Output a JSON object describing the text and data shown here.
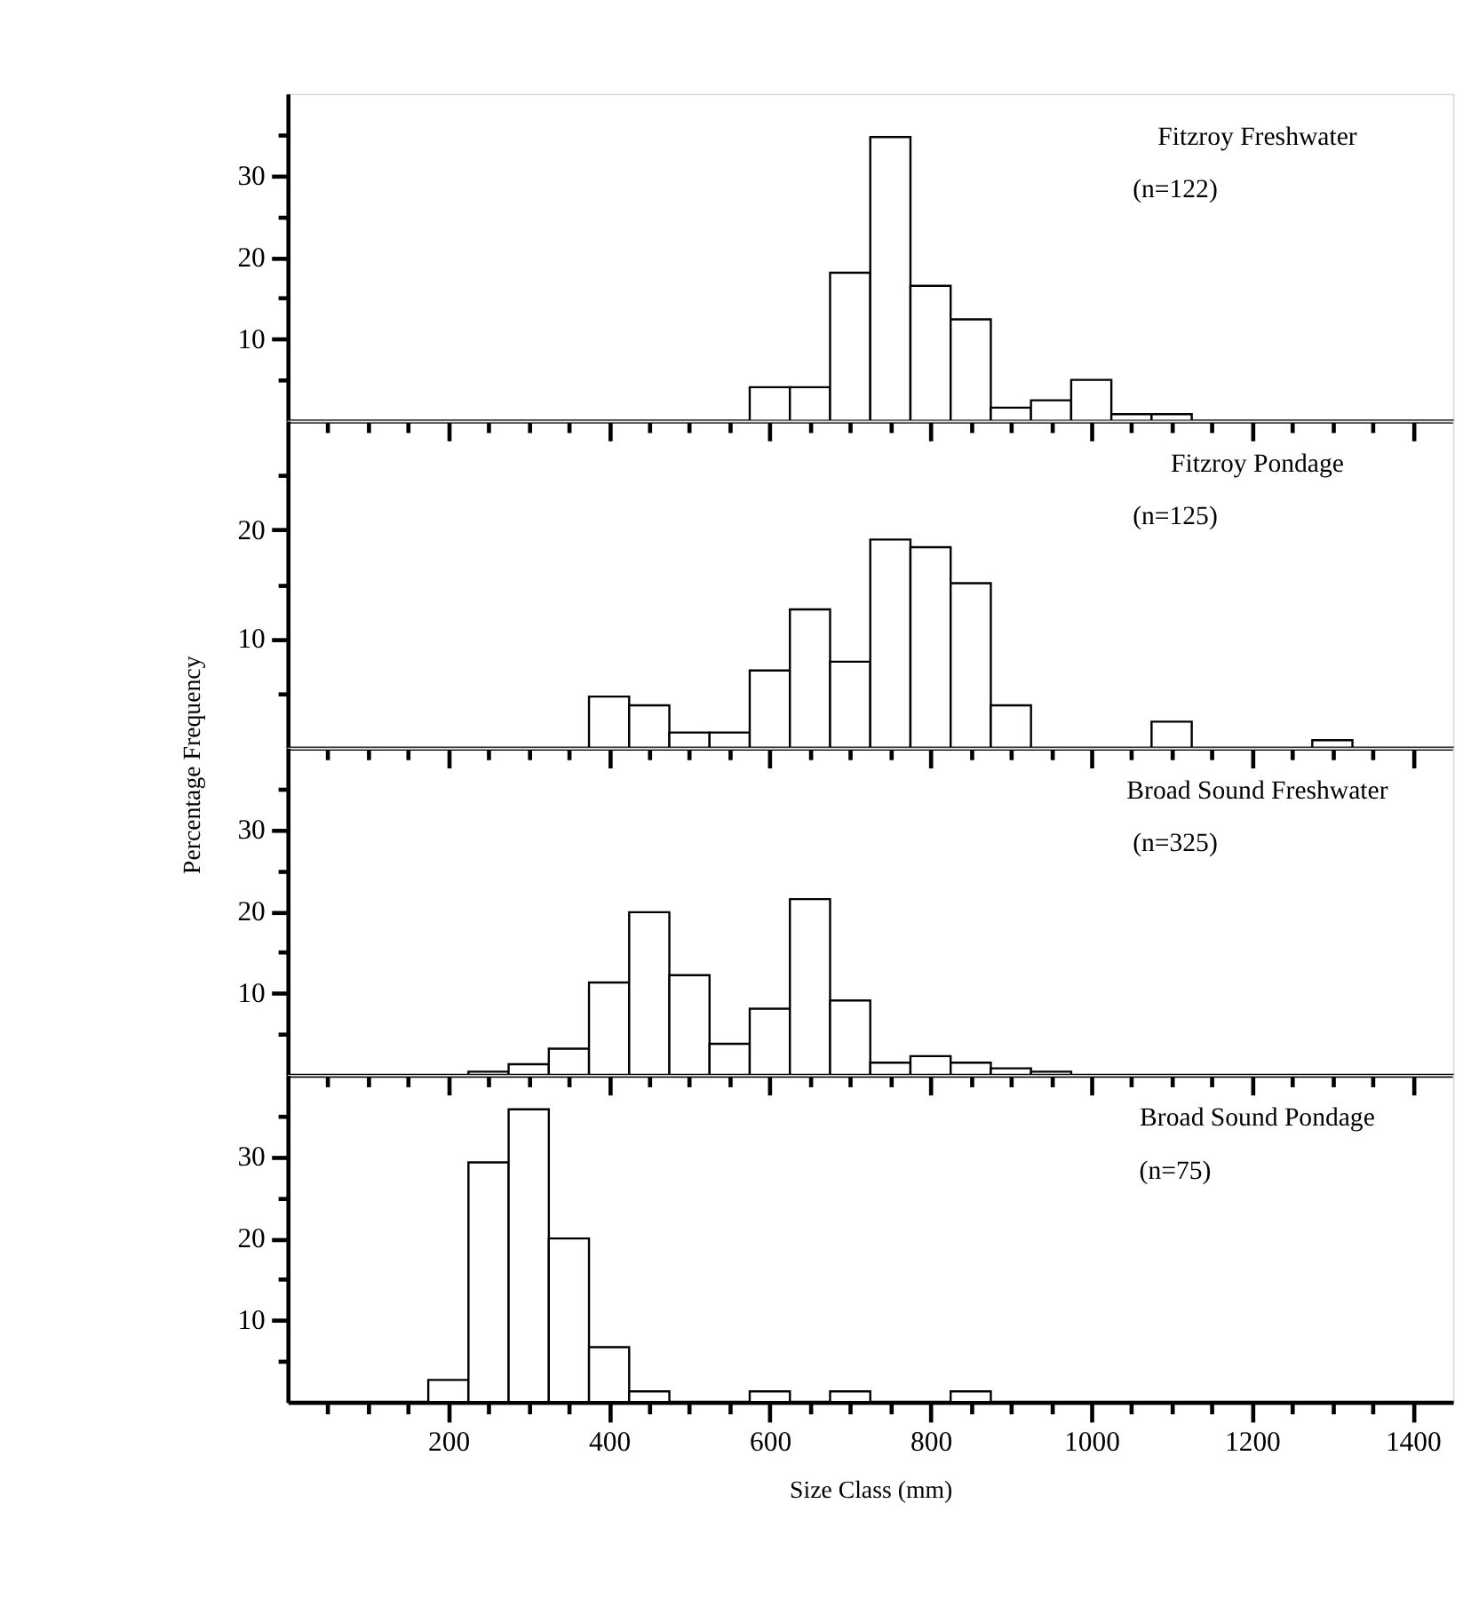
{
  "chart_data": [
    {
      "type": "histogram",
      "title": "Fitzroy Freshwater",
      "subtitle": "(n=122)",
      "color": "#ffffff",
      "bins": [
        575,
        625,
        675,
        725,
        775,
        825,
        875,
        925,
        975,
        1025,
        1075,
        1125
      ],
      "values": [
        4.1,
        4.1,
        18.1,
        34.7,
        16.5,
        12.4,
        1.6,
        2.5,
        5.0,
        0.8,
        0.8
      ],
      "xlim": [
        0,
        1450
      ],
      "ylim": [
        0,
        40
      ],
      "xticks": [
        {
          "value": 50,
          "label": null
        },
        {
          "value": 100,
          "label": null
        },
        {
          "value": 150,
          "label": null
        },
        200,
        {
          "value": 250,
          "label": null
        },
        {
          "value": 300,
          "label": null
        },
        {
          "value": 350,
          "label": null
        },
        400,
        {
          "value": 450,
          "label": null
        },
        {
          "value": 500,
          "label": null
        },
        {
          "value": 550,
          "label": null
        },
        600,
        {
          "value": 650,
          "label": null
        },
        {
          "value": 700,
          "label": null
        },
        {
          "value": 750,
          "label": null
        },
        800,
        {
          "value": 850,
          "label": null
        },
        {
          "value": 900,
          "label": null
        },
        {
          "value": 950,
          "label": null
        },
        1000,
        {
          "value": 1050,
          "label": null
        },
        {
          "value": 1100,
          "label": null
        },
        {
          "value": 1150,
          "label": null
        },
        1200,
        {
          "value": 1250,
          "label": null
        },
        {
          "value": 1300,
          "label": null
        },
        {
          "value": 1350,
          "label": null
        },
        1400
      ],
      "yticks": [
        {
          "value": 5,
          "label": null
        },
        10,
        {
          "value": 15,
          "label": null
        },
        20,
        {
          "value": 25,
          "label": null
        },
        30,
        {
          "value": 35,
          "label": null
        }
      ],
      "tick_labels": "y",
      "grid": false
    },
    {
      "type": "histogram",
      "title": "Fitzroy Pondage",
      "subtitle": "(n=125)",
      "color": "#ffffff",
      "ylabel": "Percentage Frequency",
      "bins": [
        375,
        425,
        475,
        525,
        575,
        625,
        675,
        725,
        775,
        825,
        875,
        925,
        975,
        1025,
        1075,
        1125,
        1175,
        1225,
        1275,
        1325
      ],
      "values": [
        4.7,
        3.9,
        1.4,
        1.4,
        7.1,
        12.7,
        7.9,
        19.1,
        18.4,
        15.1,
        3.9,
        0,
        0,
        0,
        2.4,
        0,
        0,
        0,
        0.7
      ],
      "xlim": [
        0,
        1450
      ],
      "ylim": [
        0,
        30
      ],
      "xticks": [
        {
          "value": 50,
          "label": null
        },
        {
          "value": 100,
          "label": null
        },
        {
          "value": 150,
          "label": null
        },
        200,
        {
          "value": 250,
          "label": null
        },
        {
          "value": 300,
          "label": null
        },
        {
          "value": 350,
          "label": null
        },
        400,
        {
          "value": 450,
          "label": null
        },
        {
          "value": 500,
          "label": null
        },
        {
          "value": 550,
          "label": null
        },
        600,
        {
          "value": 650,
          "label": null
        },
        {
          "value": 700,
          "label": null
        },
        {
          "value": 750,
          "label": null
        },
        800,
        {
          "value": 850,
          "label": null
        },
        {
          "value": 900,
          "label": null
        },
        {
          "value": 950,
          "label": null
        },
        1000,
        {
          "value": 1050,
          "label": null
        },
        {
          "value": 1100,
          "label": null
        },
        {
          "value": 1150,
          "label": null
        },
        1200,
        {
          "value": 1250,
          "label": null
        },
        {
          "value": 1300,
          "label": null
        },
        {
          "value": 1350,
          "label": null
        },
        1400
      ],
      "yticks": [
        {
          "value": 5,
          "label": null
        },
        10,
        {
          "value": 15,
          "label": null
        },
        20,
        {
          "value": 25,
          "label": null
        }
      ],
      "tick_labels": "y",
      "grid": false
    },
    {
      "type": "histogram",
      "title": "Broad Sound Freshwater",
      "subtitle": "(n=325)",
      "color": "#ffffff",
      "bins": [
        225,
        275,
        325,
        375,
        425,
        475,
        525,
        575,
        625,
        675,
        725,
        775,
        825,
        875,
        925,
        975
      ],
      "values": [
        0.4,
        1.3,
        3.2,
        11.3,
        19.9,
        12.2,
        3.8,
        8.1,
        21.5,
        9.1,
        1.5,
        2.3,
        1.5,
        0.8,
        0.4
      ],
      "xlim": [
        0,
        1450
      ],
      "ylim": [
        0,
        40
      ],
      "xticks": [
        {
          "value": 50,
          "label": null
        },
        {
          "value": 100,
          "label": null
        },
        {
          "value": 150,
          "label": null
        },
        200,
        {
          "value": 250,
          "label": null
        },
        {
          "value": 300,
          "label": null
        },
        {
          "value": 350,
          "label": null
        },
        400,
        {
          "value": 450,
          "label": null
        },
        {
          "value": 500,
          "label": null
        },
        {
          "value": 550,
          "label": null
        },
        600,
        {
          "value": 650,
          "label": null
        },
        {
          "value": 700,
          "label": null
        },
        {
          "value": 750,
          "label": null
        },
        800,
        {
          "value": 850,
          "label": null
        },
        {
          "value": 900,
          "label": null
        },
        {
          "value": 950,
          "label": null
        },
        1000,
        {
          "value": 1050,
          "label": null
        },
        {
          "value": 1100,
          "label": null
        },
        {
          "value": 1150,
          "label": null
        },
        1200,
        {
          "value": 1250,
          "label": null
        },
        {
          "value": 1300,
          "label": null
        },
        {
          "value": 1350,
          "label": null
        },
        1400
      ],
      "yticks": [
        {
          "value": 5,
          "label": null
        },
        10,
        {
          "value": 15,
          "label": null
        },
        20,
        {
          "value": 25,
          "label": null
        },
        30,
        {
          "value": 35,
          "label": null
        }
      ],
      "tick_labels": "y",
      "grid": false
    },
    {
      "type": "histogram",
      "title": "Broad Sound Pondage",
      "subtitle": "(n=75)",
      "color": "#ffffff",
      "xlabel": "Size Class  (mm)",
      "bins": [
        175,
        225,
        275,
        325,
        375,
        425,
        475,
        525,
        575,
        625,
        675,
        725,
        775,
        825,
        875
      ],
      "values": [
        2.7,
        29.3,
        35.8,
        20.0,
        6.7,
        1.3,
        0,
        0,
        1.3,
        0,
        1.3,
        0,
        0,
        1.3
      ],
      "xlim": [
        0,
        1450
      ],
      "ylim": [
        0,
        40
      ],
      "xticks": [
        {
          "value": 50,
          "label": null
        },
        {
          "value": 100,
          "label": null
        },
        {
          "value": 150,
          "label": null
        },
        200,
        {
          "value": 250,
          "label": null
        },
        {
          "value": 300,
          "label": null
        },
        {
          "value": 350,
          "label": null
        },
        400,
        {
          "value": 450,
          "label": null
        },
        {
          "value": 500,
          "label": null
        },
        {
          "value": 550,
          "label": null
        },
        600,
        {
          "value": 650,
          "label": null
        },
        {
          "value": 700,
          "label": null
        },
        {
          "value": 750,
          "label": null
        },
        800,
        {
          "value": 850,
          "label": null
        },
        {
          "value": 900,
          "label": null
        },
        {
          "value": 950,
          "label": null
        },
        1000,
        {
          "value": 1050,
          "label": null
        },
        {
          "value": 1100,
          "label": null
        },
        {
          "value": 1150,
          "label": null
        },
        1200,
        {
          "value": 1250,
          "label": null
        },
        {
          "value": 1300,
          "label": null
        },
        {
          "value": 1350,
          "label": null
        },
        1400
      ],
      "yticks": [
        {
          "value": 5,
          "label": null
        },
        10,
        {
          "value": 15,
          "label": null
        },
        20,
        {
          "value": 25,
          "label": null
        },
        30,
        {
          "value": 35,
          "label": null
        }
      ],
      "grid": false
    }
  ]
}
